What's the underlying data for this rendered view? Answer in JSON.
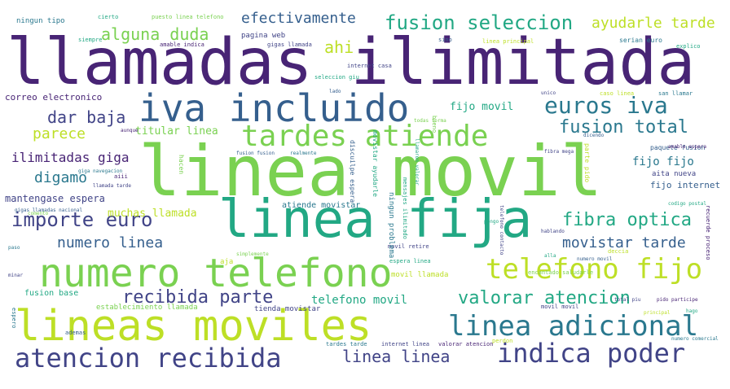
{
  "palette": {
    "purple": "#482475",
    "indigo": "#414487",
    "slate": "#355f8d",
    "teal": "#2a788e",
    "green": "#22a884",
    "lime": "#7ad151",
    "yellow": "#bddf26",
    "background": "#ffffff"
  },
  "words": [
    "llamadas ilimitada",
    "linea movil",
    "linea fija",
    "numero telefono",
    "lineas moviles",
    "iva incluido",
    "tardes atiende",
    "telefono fijo",
    "linea adicional",
    "atencion recibida",
    "indica poder",
    "euros iva",
    "fusion seleccion",
    "fusion total",
    "importe euro",
    "fibra optica",
    "recibida parte",
    "valorar atencion",
    "alguna duda",
    "dar baja",
    "parece",
    "digamo",
    "efectivamente",
    "ayudarle tarde",
    "ahi",
    "linea linea",
    "numero linea",
    "movistar tarde",
    "ilimitadas giga",
    "mantengase espera",
    "fijo movil",
    "titular linea",
    "muchas llamada",
    "telefono movil",
    "fijo fijo",
    "fijo internet",
    "aita nueva",
    "correo electronico",
    "atiende movistar",
    "fusion base",
    "establecimiento llamada",
    "tienda movistar",
    "movil llamada",
    "paquete fusion",
    "pagina web",
    "ningun tipo",
    "cierto",
    "puesto linea telefono",
    "gigas llamada",
    "sino",
    "linea principal",
    "amable indica",
    "serian euro",
    "explico",
    "internet casa",
    "seleccion giu",
    "lado",
    "caso linea",
    "san llamar",
    "unico",
    "todas forma",
    "siempre",
    "aunque",
    "fusion fusion",
    "realmente",
    "amable espera",
    "fibra mega",
    "dicendo",
    "codigo postal",
    "aiii",
    "giga navegacion",
    "llamada tarde",
    "comento",
    "pongo",
    "hablando",
    "simplemente",
    "deccia",
    "alla",
    "numero movil",
    "encantado saludarle",
    "movil retire",
    "espera linea",
    "tardes tarde",
    "internet linea",
    "valorar atencion",
    "perdon",
    "ademas",
    "total piu",
    "pido participe",
    "hago",
    "principal",
    "numero comercial",
    "movil movil",
    "gigas llamadas nacional",
    "paso",
    "minar",
    "aja",
    "recuerde proceso",
    "ningun problema",
    "movistar ayudarle",
    "discuilpe espera",
    "parte pido",
    "mensajes ilimitado",
    "telefono contacto",
    "bueno",
    "hacen",
    "espero",
    "llamaron valorar"
  ]
}
